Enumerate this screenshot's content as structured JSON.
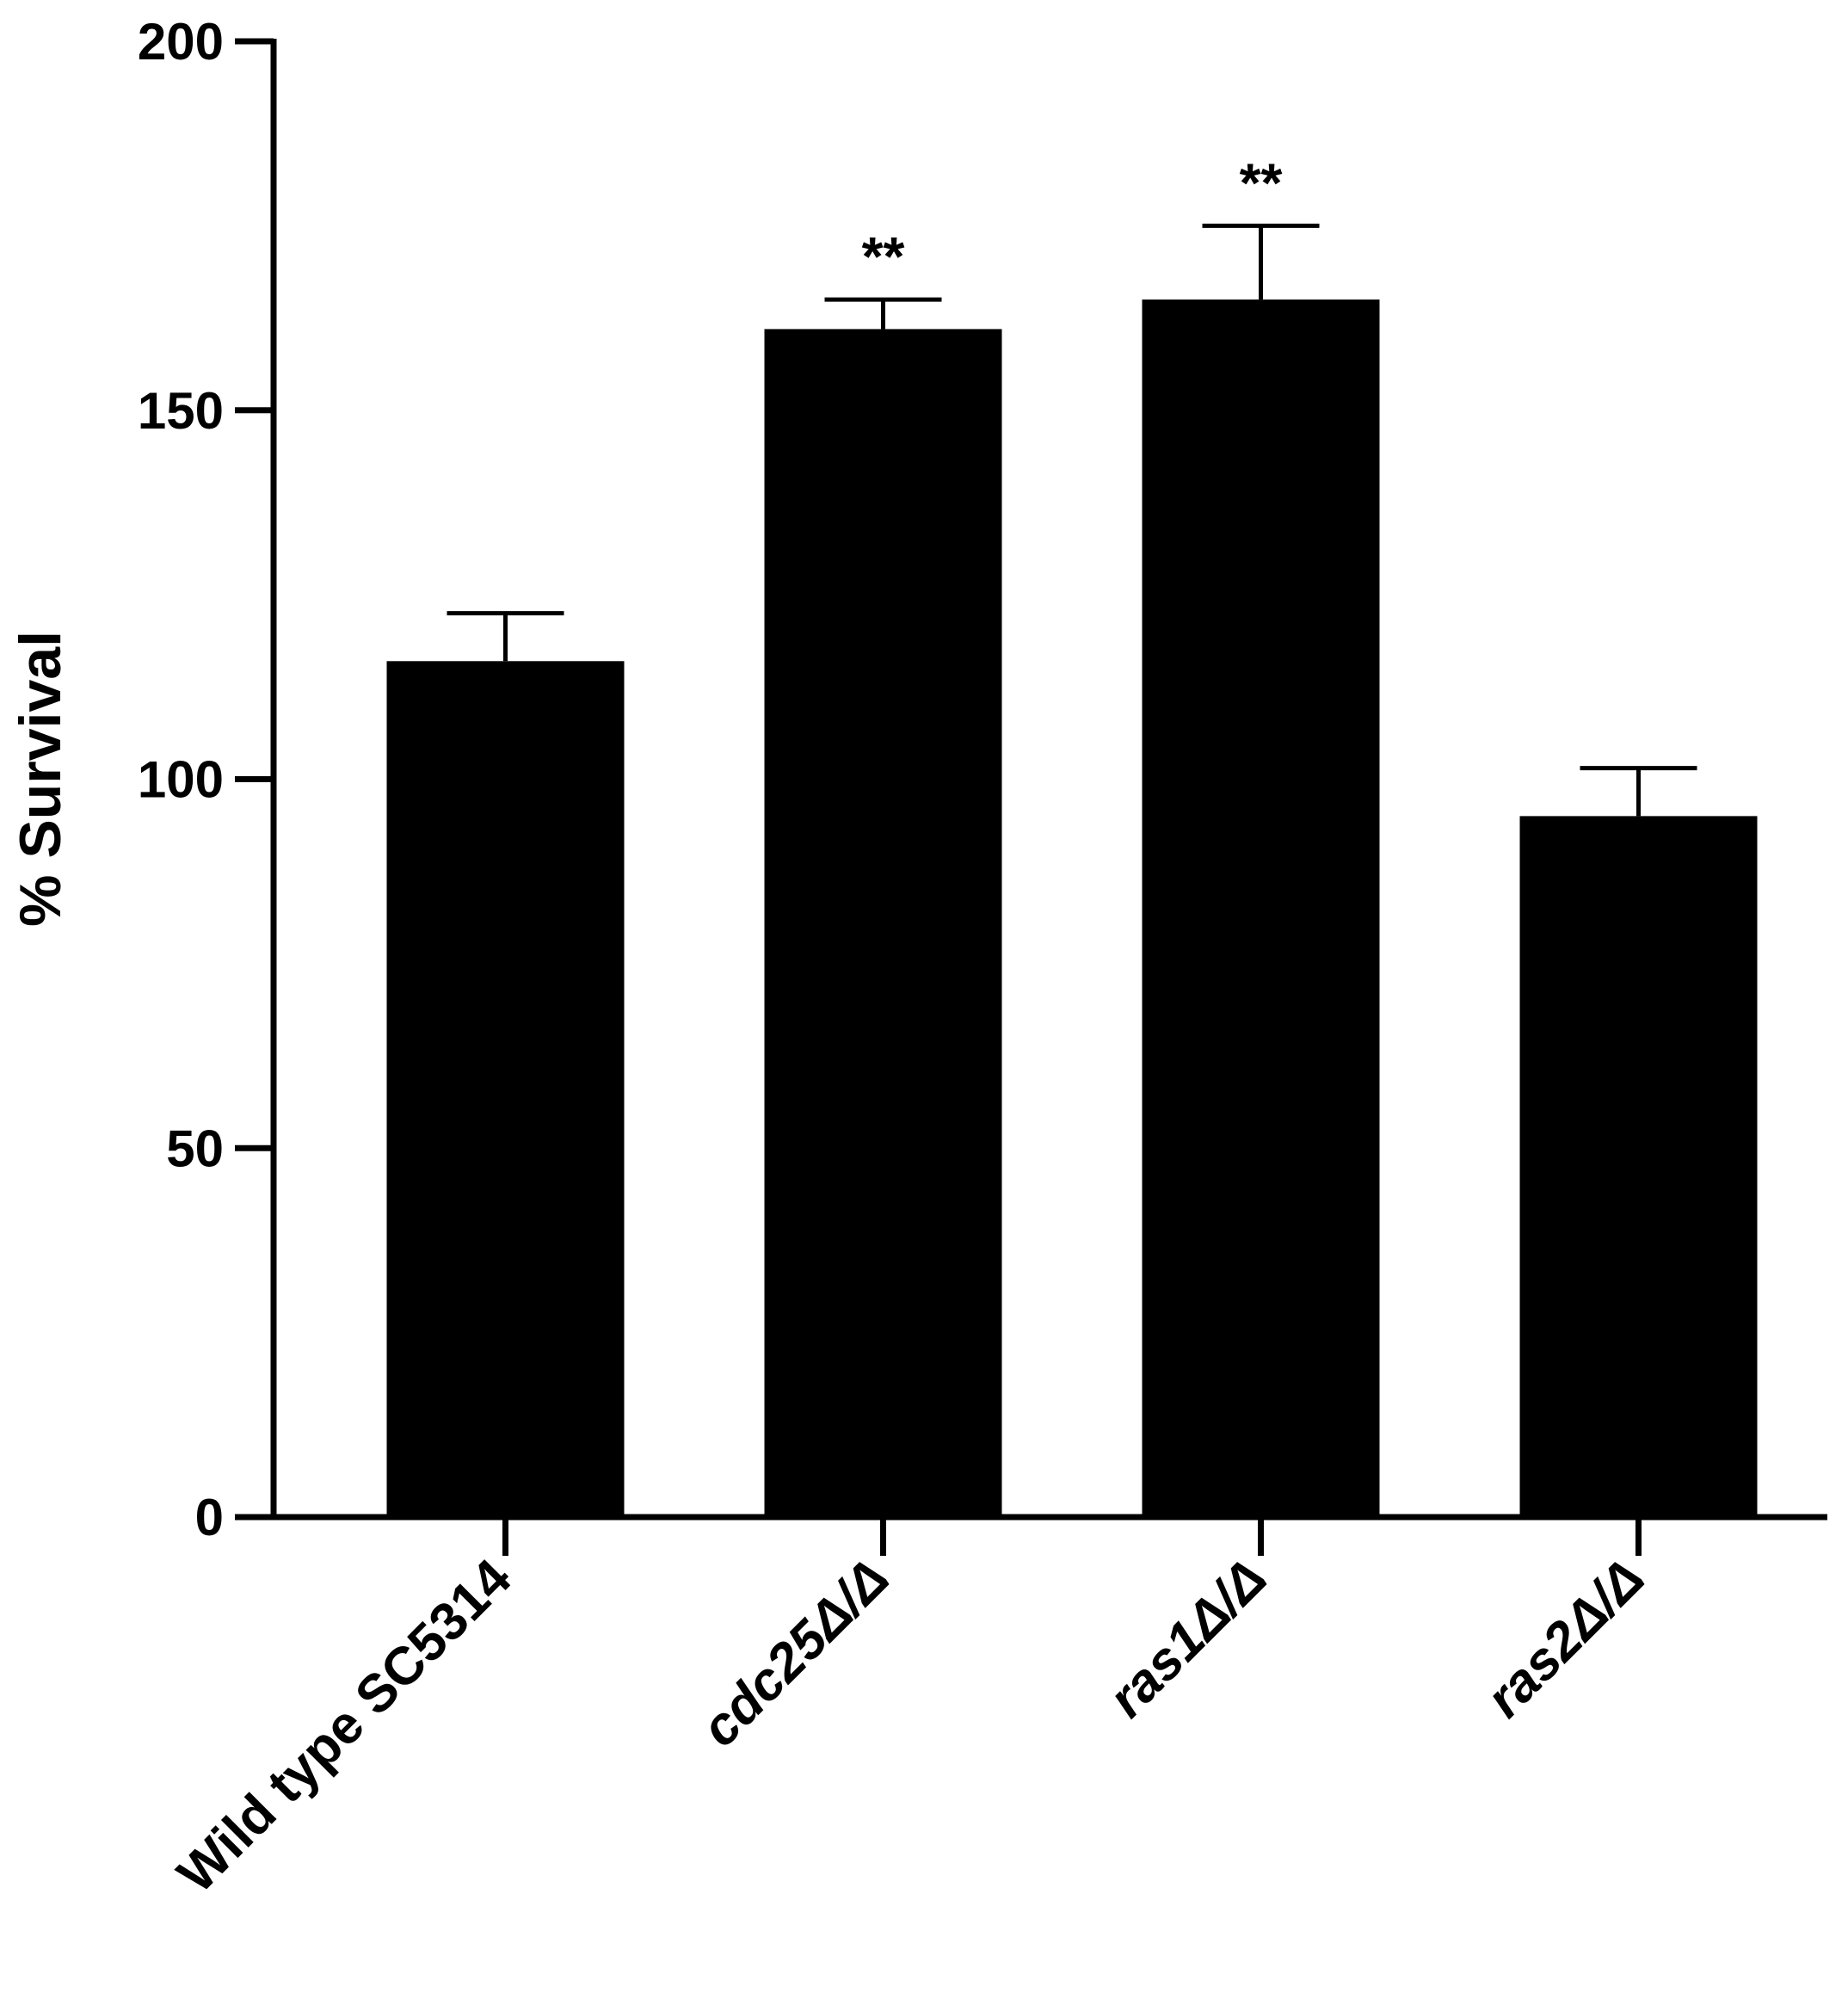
{
  "chart_data": {
    "type": "bar",
    "y_label": "% Survival",
    "categories": [
      "Wild type SC5314",
      "cdc25Δ/Δ",
      "ras1Δ/Δ",
      "ras2Δ/Δ"
    ],
    "italic_categories": [
      false,
      true,
      true,
      true
    ],
    "values": [
      116,
      161,
      165,
      95
    ],
    "errors": [
      6.5,
      4,
      10,
      6.5
    ],
    "annotations": [
      null,
      "**",
      "**",
      null
    ],
    "color": "#000000",
    "ylim": [
      0,
      200
    ],
    "yticks": [
      0,
      50,
      100,
      150,
      200
    ],
    "grid": false
  }
}
